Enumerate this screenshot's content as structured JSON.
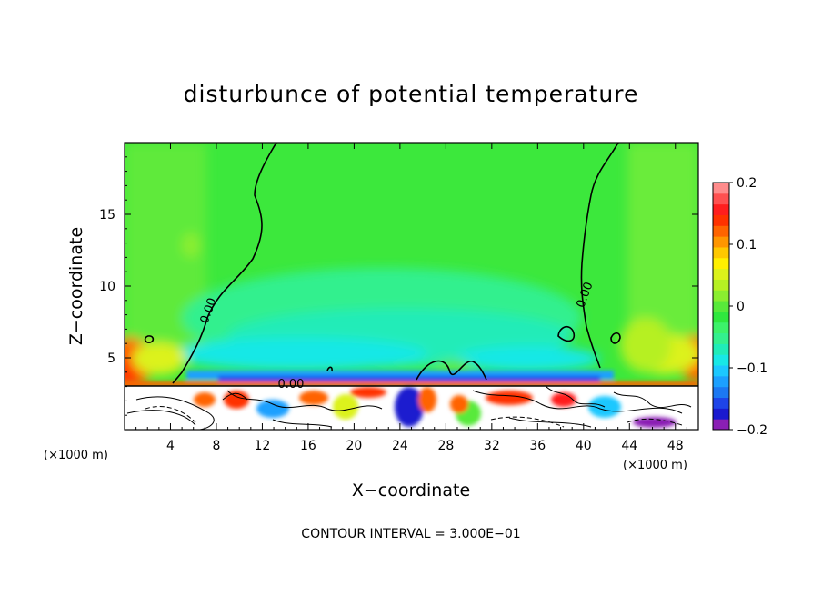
{
  "chart_data": {
    "type": "heatmap",
    "title": "disturbunce of potential temperature",
    "xlabel": "X−coordinate",
    "ylabel": "Z−coordinate",
    "x_unit_left": "(×1000 m)",
    "x_unit_right": "(×1000 m)",
    "xlim": [
      0,
      50
    ],
    "ylim": [
      0,
      20
    ],
    "x_ticks": [
      4,
      8,
      12,
      16,
      20,
      24,
      28,
      32,
      36,
      40,
      44,
      48
    ],
    "x_tick_labels": [
      "4",
      "8",
      "12",
      "16",
      "20",
      "24",
      "28",
      "32",
      "36",
      "40",
      "44",
      "48"
    ],
    "y_ticks": [
      5,
      10,
      15
    ],
    "y_tick_labels": [
      "5",
      "10",
      "15"
    ],
    "contour_interval_text": "CONTOUR INTERVAL = 3.000E−01",
    "contour_labels": [
      {
        "text": "0.00",
        "x": 7.6,
        "z": 8.2
      },
      {
        "text": "0.00",
        "x": 14.5,
        "z": 2.9
      },
      {
        "text": "0.00",
        "x": 40.4,
        "z": 9.3
      }
    ],
    "colorbar": {
      "min": -0.2,
      "max": 0.2,
      "tick_values": [
        0.2,
        0.1,
        0,
        -0.1,
        -0.2
      ],
      "tick_labels": [
        "0.2",
        "0.1",
        "0",
        "−0.1",
        "−0.2"
      ],
      "colors": [
        "#8a1fb4",
        "#1a1acf",
        "#1e44e8",
        "#1c78f2",
        "#1ca0ff",
        "#1cc8ff",
        "#18e8e6",
        "#20ecb8",
        "#33f08e",
        "#3cf26a",
        "#2fe83e",
        "#58ea3a",
        "#8aee30",
        "#b6f023",
        "#dcf21a",
        "#fff000",
        "#ffc800",
        "#ff9600",
        "#ff6400",
        "#ff3200",
        "#ff1e1e",
        "#ff5050",
        "#ff8c8c"
      ]
    }
  }
}
